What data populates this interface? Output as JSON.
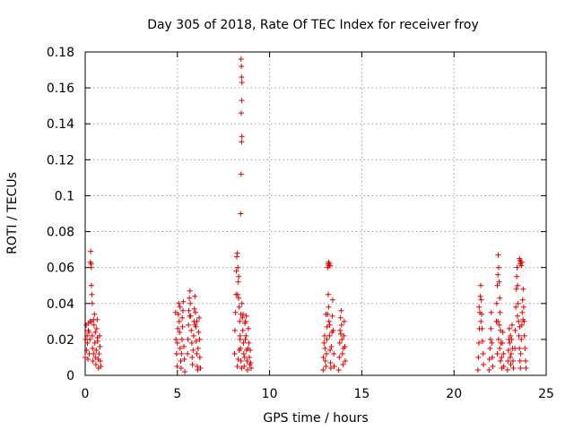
{
  "chart_data": {
    "type": "scatter",
    "title": "Day 305 of 2018, Rate Of TEC Index for receiver froy",
    "xlabel": "GPS time / hours",
    "ylabel": "ROTI / TECUs",
    "xlim": [
      0,
      25
    ],
    "ylim": [
      0,
      0.18
    ],
    "grid": true,
    "marker": "+",
    "series_color": "#dd0000",
    "xticks": [
      {
        "value": 0,
        "label": "0"
      },
      {
        "value": 5,
        "label": "5"
      },
      {
        "value": 10,
        "label": "10"
      },
      {
        "value": 15,
        "label": "15"
      },
      {
        "value": 20,
        "label": "20"
      },
      {
        "value": 25,
        "label": "25"
      }
    ],
    "yticks": [
      {
        "value": 0,
        "label": "0"
      },
      {
        "value": 0.02,
        "label": "0.02"
      },
      {
        "value": 0.04,
        "label": "0.04"
      },
      {
        "value": 0.06,
        "label": "0.06"
      },
      {
        "value": 0.08,
        "label": "0.08"
      },
      {
        "value": 0.1,
        "label": "0.1"
      },
      {
        "value": 0.12,
        "label": "0.12"
      },
      {
        "value": 0.14,
        "label": "0.14"
      },
      {
        "value": 0.16,
        "label": "0.16"
      },
      {
        "value": 0.18,
        "label": "0.18"
      }
    ],
    "series": [
      {
        "name": "ROTI",
        "points": [
          [
            0.0,
            0.01
          ],
          [
            0.02,
            0.02
          ],
          [
            0.05,
            0.028
          ],
          [
            0.08,
            0.014
          ],
          [
            0.1,
            0.022
          ],
          [
            0.12,
            0.018
          ],
          [
            0.15,
            0.009
          ],
          [
            0.17,
            0.025
          ],
          [
            0.18,
            0.029
          ],
          [
            0.2,
            0.024
          ],
          [
            0.22,
            0.012
          ],
          [
            0.25,
            0.02
          ],
          [
            0.27,
            0.03
          ],
          [
            0.28,
            0.063
          ],
          [
            0.3,
            0.069
          ],
          [
            0.32,
            0.062
          ],
          [
            0.34,
            0.05
          ],
          [
            0.36,
            0.045
          ],
          [
            0.38,
            0.04
          ],
          [
            0.33,
            0.06
          ],
          [
            0.35,
            0.03
          ],
          [
            0.38,
            0.022
          ],
          [
            0.4,
            0.015
          ],
          [
            0.42,
            0.008
          ],
          [
            0.45,
            0.012
          ],
          [
            0.48,
            0.028
          ],
          [
            0.5,
            0.034
          ],
          [
            0.52,
            0.018
          ],
          [
            0.55,
            0.01
          ],
          [
            0.58,
            0.006
          ],
          [
            0.6,
            0.014
          ],
          [
            0.62,
            0.026
          ],
          [
            0.65,
            0.031
          ],
          [
            0.68,
            0.019
          ],
          [
            0.7,
            0.009
          ],
          [
            0.72,
            0.004
          ],
          [
            0.75,
            0.012
          ],
          [
            0.78,
            0.022
          ],
          [
            0.8,
            0.016
          ],
          [
            0.82,
            0.008
          ],
          [
            0.85,
            0.005
          ],
          [
            0.45,
            0.031
          ],
          [
            0.55,
            0.024
          ],
          [
            0.66,
            0.021
          ],
          [
            4.9,
            0.035
          ],
          [
            4.92,
            0.02
          ],
          [
            4.95,
            0.012
          ],
          [
            4.98,
            0.005
          ],
          [
            5.0,
            0.018
          ],
          [
            5.02,
            0.026
          ],
          [
            5.05,
            0.034
          ],
          [
            5.08,
            0.04
          ],
          [
            5.1,
            0.03
          ],
          [
            5.12,
            0.024
          ],
          [
            5.15,
            0.015
          ],
          [
            5.18,
            0.008
          ],
          [
            5.2,
            0.004
          ],
          [
            5.22,
            0.012
          ],
          [
            5.25,
            0.02
          ],
          [
            5.28,
            0.027
          ],
          [
            5.3,
            0.036
          ],
          [
            5.32,
            0.041
          ],
          [
            5.35,
            0.016
          ],
          [
            5.38,
            0.009
          ],
          [
            5.4,
            0.002
          ],
          [
            5.14,
            0.038
          ],
          [
            5.26,
            0.032
          ],
          [
            5.55,
            0.012
          ],
          [
            5.58,
            0.02
          ],
          [
            5.6,
            0.028
          ],
          [
            5.62,
            0.036
          ],
          [
            5.65,
            0.043
          ],
          [
            5.68,
            0.047
          ],
          [
            5.7,
            0.04
          ],
          [
            5.72,
            0.033
          ],
          [
            5.75,
            0.025
          ],
          [
            5.78,
            0.018
          ],
          [
            5.8,
            0.01
          ],
          [
            5.82,
            0.006
          ],
          [
            5.85,
            0.014
          ],
          [
            5.88,
            0.022
          ],
          [
            5.9,
            0.03
          ],
          [
            5.92,
            0.037
          ],
          [
            5.95,
            0.044
          ],
          [
            5.98,
            0.035
          ],
          [
            6.0,
            0.027
          ],
          [
            6.02,
            0.019
          ],
          [
            6.05,
            0.012
          ],
          [
            6.08,
            0.005
          ],
          [
            6.1,
            0.003
          ],
          [
            6.12,
            0.015
          ],
          [
            6.15,
            0.024
          ],
          [
            6.18,
            0.032
          ],
          [
            6.2,
            0.02
          ],
          [
            6.22,
            0.01
          ],
          [
            6.25,
            0.004
          ],
          [
            5.66,
            0.033
          ],
          [
            5.96,
            0.028
          ],
          [
            6.06,
            0.03
          ],
          [
            8.1,
            0.012
          ],
          [
            8.12,
            0.025
          ],
          [
            8.15,
            0.035
          ],
          [
            8.18,
            0.045
          ],
          [
            8.2,
            0.058
          ],
          [
            8.22,
            0.066
          ],
          [
            8.25,
            0.068
          ],
          [
            8.28,
            0.06
          ],
          [
            8.3,
            0.052
          ],
          [
            8.32,
            0.043
          ],
          [
            8.35,
            0.038
          ],
          [
            8.38,
            0.03
          ],
          [
            8.4,
            0.022
          ],
          [
            8.42,
            0.015
          ],
          [
            8.45,
            0.008
          ],
          [
            8.48,
            0.004
          ],
          [
            8.25,
            0.005
          ],
          [
            8.3,
            0.009
          ],
          [
            8.35,
            0.014
          ],
          [
            8.4,
            0.02
          ],
          [
            8.26,
            0.045
          ],
          [
            8.33,
            0.055
          ],
          [
            8.44,
            0.034
          ],
          [
            8.45,
            0.176
          ],
          [
            8.47,
            0.172
          ],
          [
            8.48,
            0.166
          ],
          [
            8.5,
            0.163
          ],
          [
            8.49,
            0.153
          ],
          [
            8.46,
            0.146
          ],
          [
            8.5,
            0.133
          ],
          [
            8.48,
            0.13
          ],
          [
            8.45,
            0.112
          ],
          [
            8.43,
            0.09
          ],
          [
            8.5,
            0.04
          ],
          [
            8.52,
            0.032
          ],
          [
            8.55,
            0.025
          ],
          [
            8.58,
            0.018
          ],
          [
            8.6,
            0.012
          ],
          [
            8.62,
            0.005
          ],
          [
            8.65,
            0.01
          ],
          [
            8.68,
            0.02
          ],
          [
            8.7,
            0.03
          ],
          [
            8.72,
            0.022
          ],
          [
            8.75,
            0.014
          ],
          [
            8.78,
            0.008
          ],
          [
            8.8,
            0.003
          ],
          [
            8.82,
            0.015
          ],
          [
            8.85,
            0.026
          ],
          [
            8.88,
            0.018
          ],
          [
            8.9,
            0.01
          ],
          [
            8.92,
            0.006
          ],
          [
            8.95,
            0.014
          ],
          [
            8.98,
            0.007
          ],
          [
            9.0,
            0.004
          ],
          [
            8.56,
            0.034
          ],
          [
            8.66,
            0.029
          ],
          [
            8.74,
            0.033
          ],
          [
            12.9,
            0.003
          ],
          [
            12.92,
            0.01
          ],
          [
            12.95,
            0.018
          ],
          [
            12.98,
            0.022
          ],
          [
            13.0,
            0.015
          ],
          [
            13.02,
            0.008
          ],
          [
            13.05,
            0.005
          ],
          [
            13.08,
            0.012
          ],
          [
            13.1,
            0.02
          ],
          [
            13.12,
            0.027
          ],
          [
            13.15,
            0.034
          ],
          [
            13.18,
            0.045
          ],
          [
            13.2,
            0.038
          ],
          [
            13.22,
            0.03
          ],
          [
            13.25,
            0.022
          ],
          [
            13.28,
            0.014
          ],
          [
            13.3,
            0.007
          ],
          [
            13.32,
            0.004
          ],
          [
            13.35,
            0.016
          ],
          [
            13.38,
            0.024
          ],
          [
            13.4,
            0.033
          ],
          [
            13.42,
            0.042
          ],
          [
            13.45,
            0.025
          ],
          [
            13.48,
            0.012
          ],
          [
            13.5,
            0.005
          ],
          [
            13.06,
            0.034
          ],
          [
            13.26,
            0.028
          ],
          [
            13.15,
            0.06
          ],
          [
            13.18,
            0.062
          ],
          [
            13.2,
            0.063
          ],
          [
            13.22,
            0.061
          ],
          [
            13.25,
            0.062
          ],
          [
            13.28,
            0.061
          ],
          [
            13.75,
            0.003
          ],
          [
            13.78,
            0.01
          ],
          [
            13.8,
            0.018
          ],
          [
            13.82,
            0.025
          ],
          [
            13.85,
            0.032
          ],
          [
            13.88,
            0.036
          ],
          [
            13.9,
            0.028
          ],
          [
            13.92,
            0.02
          ],
          [
            13.95,
            0.012
          ],
          [
            13.98,
            0.006
          ],
          [
            14.0,
            0.015
          ],
          [
            14.02,
            0.022
          ],
          [
            14.05,
            0.03
          ],
          [
            14.08,
            0.016
          ],
          [
            14.1,
            0.008
          ],
          [
            13.86,
            0.023
          ],
          [
            21.3,
            0.003
          ],
          [
            21.32,
            0.01
          ],
          [
            21.35,
            0.018
          ],
          [
            21.38,
            0.026
          ],
          [
            21.4,
            0.035
          ],
          [
            21.42,
            0.044
          ],
          [
            21.45,
            0.05
          ],
          [
            21.48,
            0.042
          ],
          [
            21.5,
            0.034
          ],
          [
            21.52,
            0.026
          ],
          [
            21.55,
            0.019
          ],
          [
            21.58,
            0.012
          ],
          [
            21.6,
            0.006
          ],
          [
            21.36,
            0.038
          ],
          [
            21.46,
            0.03
          ],
          [
            21.9,
            0.003
          ],
          [
            21.92,
            0.009
          ],
          [
            21.95,
            0.015
          ],
          [
            21.98,
            0.02
          ],
          [
            22.0,
            0.026
          ],
          [
            22.02,
            0.035
          ],
          [
            22.05,
            0.018
          ],
          [
            22.08,
            0.01
          ],
          [
            22.1,
            0.005
          ],
          [
            22.3,
            0.03
          ],
          [
            22.32,
            0.04
          ],
          [
            22.35,
            0.05
          ],
          [
            22.38,
            0.056
          ],
          [
            22.4,
            0.067
          ],
          [
            22.42,
            0.06
          ],
          [
            22.45,
            0.052
          ],
          [
            22.48,
            0.043
          ],
          [
            22.5,
            0.035
          ],
          [
            22.52,
            0.025
          ],
          [
            22.55,
            0.018
          ],
          [
            22.58,
            0.01
          ],
          [
            22.6,
            0.004
          ],
          [
            22.35,
            0.012
          ],
          [
            22.42,
            0.02
          ],
          [
            22.48,
            0.015
          ],
          [
            22.52,
            0.008
          ],
          [
            22.62,
            0.018
          ],
          [
            22.65,
            0.024
          ],
          [
            22.68,
            0.012
          ],
          [
            22.7,
            0.005
          ],
          [
            22.38,
            0.03
          ],
          [
            22.46,
            0.028
          ],
          [
            22.9,
            0.003
          ],
          [
            22.92,
            0.008
          ],
          [
            22.95,
            0.014
          ],
          [
            22.98,
            0.02
          ],
          [
            23.0,
            0.026
          ],
          [
            23.02,
            0.018
          ],
          [
            23.05,
            0.01
          ],
          [
            23.08,
            0.006
          ],
          [
            23.1,
            0.012
          ],
          [
            23.12,
            0.02
          ],
          [
            23.15,
            0.028
          ],
          [
            23.18,
            0.015
          ],
          [
            23.2,
            0.008
          ],
          [
            23.22,
            0.004
          ],
          [
            23.06,
            0.022
          ],
          [
            23.3,
            0.015
          ],
          [
            23.32,
            0.025
          ],
          [
            23.35,
            0.038
          ],
          [
            23.38,
            0.048
          ],
          [
            23.4,
            0.055
          ],
          [
            23.42,
            0.06
          ],
          [
            23.45,
            0.05
          ],
          [
            23.48,
            0.04
          ],
          [
            23.5,
            0.03
          ],
          [
            23.52,
            0.022
          ],
          [
            23.55,
            0.015
          ],
          [
            23.58,
            0.008
          ],
          [
            23.6,
            0.004
          ],
          [
            23.62,
            0.012
          ],
          [
            23.65,
            0.02
          ],
          [
            23.68,
            0.028
          ],
          [
            23.7,
            0.035
          ],
          [
            23.72,
            0.042
          ],
          [
            23.75,
            0.048
          ],
          [
            23.78,
            0.038
          ],
          [
            23.8,
            0.03
          ],
          [
            23.82,
            0.022
          ],
          [
            23.85,
            0.015
          ],
          [
            23.88,
            0.008
          ],
          [
            23.9,
            0.004
          ],
          [
            23.44,
            0.033
          ],
          [
            23.56,
            0.027
          ],
          [
            23.74,
            0.031
          ],
          [
            23.55,
            0.065
          ],
          [
            23.58,
            0.064
          ],
          [
            23.6,
            0.062
          ],
          [
            23.62,
            0.063
          ],
          [
            23.65,
            0.061
          ],
          [
            23.68,
            0.063
          ]
        ]
      }
    ]
  }
}
